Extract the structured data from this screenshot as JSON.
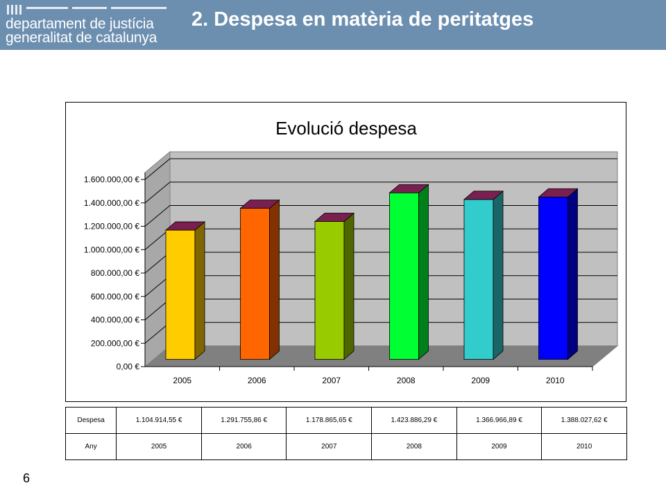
{
  "header": {
    "org_line1": "departament de justícia",
    "org_line2": "generalitat de catalunya",
    "title": "2. Despesa en matèria de peritatges",
    "background": "#6c8fb0"
  },
  "chart_data": {
    "type": "bar",
    "title": "Evolució despesa",
    "categories": [
      "2005",
      "2006",
      "2007",
      "2008",
      "2009",
      "2010"
    ],
    "values": [
      1104914.55,
      1291755.86,
      1178865.65,
      1423886.29,
      1366966.89,
      1388027.62
    ],
    "colors": [
      "#ffcc00",
      "#ff6600",
      "#99cc00",
      "#00ff33",
      "#33cccc",
      "#0000ff"
    ],
    "top_color": "#7a2050",
    "ylim": [
      0,
      1600000
    ],
    "yticks": [
      "0,00 €",
      "200.000,00 €",
      "400.000,00 €",
      "600.000,00 €",
      "800.000,00 €",
      "1.000.000,00 €",
      "1.200.000,00 €",
      "1.400.000,00 €",
      "1.600.000,00 €"
    ],
    "xlabel": "",
    "ylabel": "",
    "grid": true,
    "three_d": true
  },
  "table": {
    "row1_label": "Despesa",
    "row1_values": [
      "1.104.914,55 €",
      "1.291.755,86 €",
      "1.178.865,65 €",
      "1.423.886,29 €",
      "1.366.966,89 €",
      "1.388.027,62 €"
    ],
    "row2_label": "Any",
    "row2_values": [
      "2005",
      "2006",
      "2007",
      "2008",
      "2009",
      "2010"
    ]
  },
  "page_number": "6"
}
